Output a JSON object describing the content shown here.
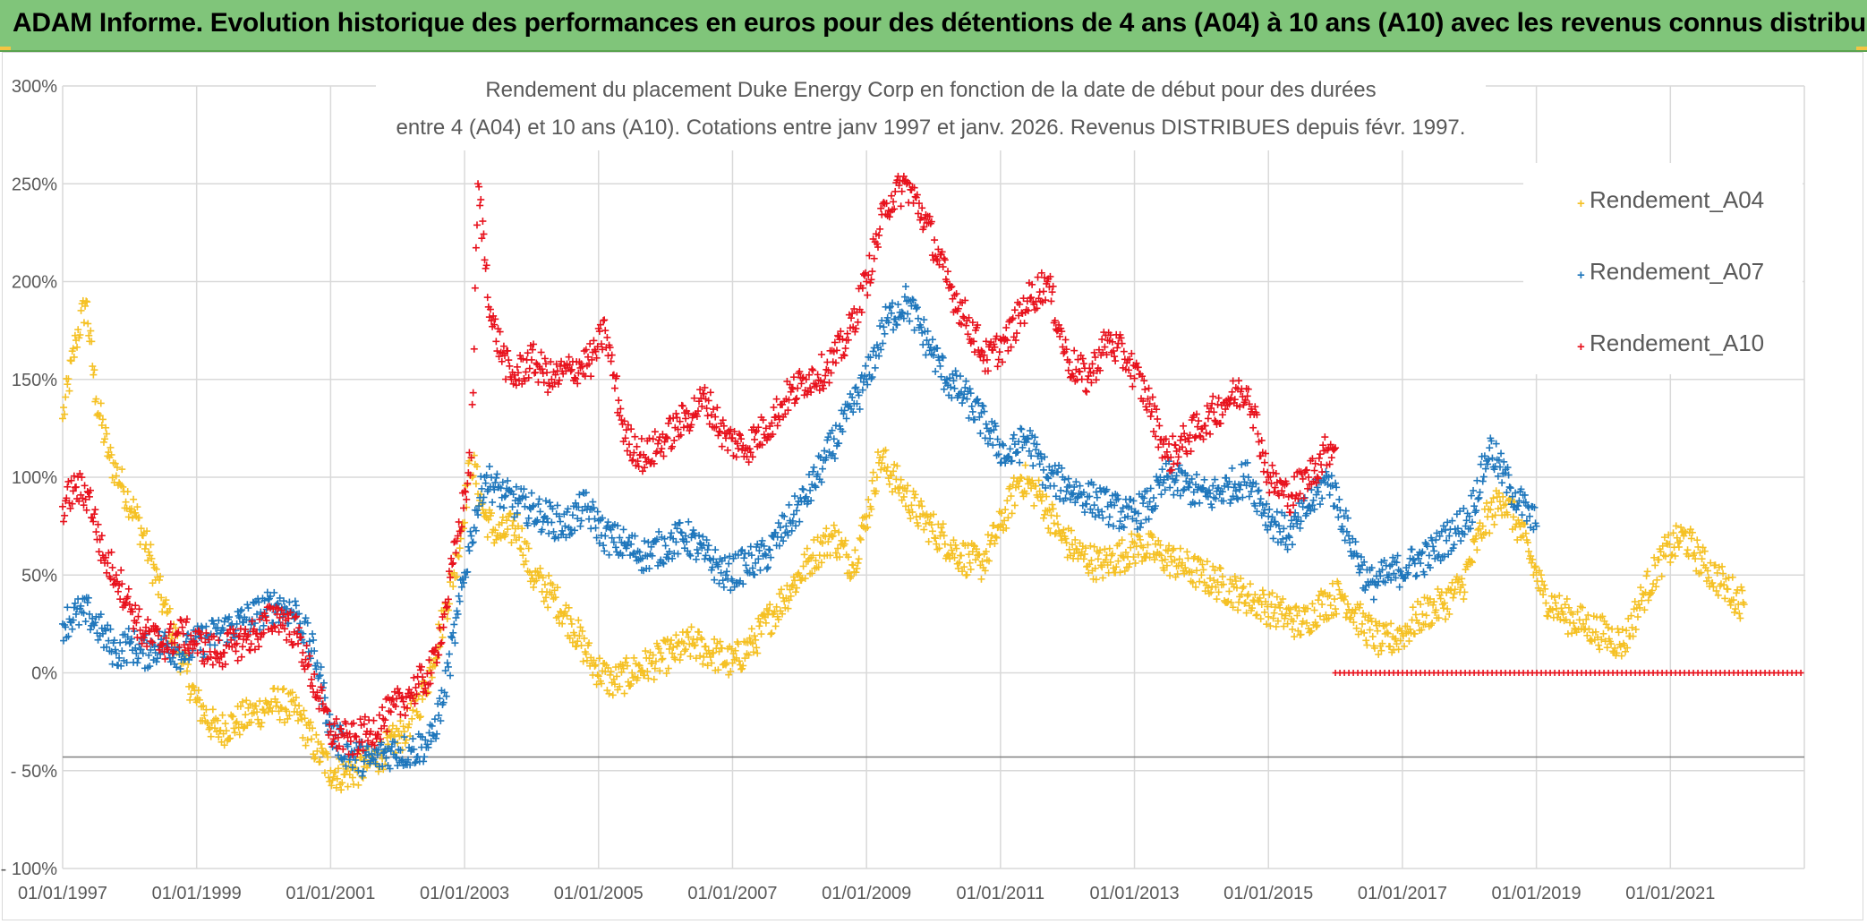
{
  "header": {
    "title": "ADAM Informe. Evolution historique des performances en euros pour des détentions de 4 ans (A04) à 10 ans (A10) avec les revenus connus distribués"
  },
  "colors": {
    "banner": "#80c57a",
    "A04": "#f5c125",
    "A07": "#1f77bc",
    "A10": "#e8121d",
    "grid": "#d9d9d9",
    "text": "#595959"
  },
  "chart_data": {
    "type": "scatter",
    "title_lines": [
      "Rendement du placement Duke Energy Corp en fonction de la date de début pour des durées",
      "entre 4 (A04) et 10 ans (A10). Cotations entre janv 1997 et janv. 2026. Revenus DISTRIBUES depuis févr. 1997."
    ],
    "xlabel": "",
    "ylabel": "",
    "xlim": [
      1997.0,
      2023.0
    ],
    "ylim": [
      -100,
      300
    ],
    "y_ticks": [
      300,
      250,
      200,
      150,
      100,
      50,
      0,
      -50,
      -100
    ],
    "y_tick_labels": [
      "300%",
      "250%",
      "200%",
      "150%",
      "100%",
      "50%",
      "0%",
      "- 50%",
      "- 100%"
    ],
    "x_ticks": [
      1997,
      1999,
      2001,
      2003,
      2005,
      2007,
      2009,
      2011,
      2013,
      2015,
      2017,
      2019,
      2021
    ],
    "x_tick_labels": [
      "01/01/1997",
      "01/01/1999",
      "01/01/2001",
      "01/01/2003",
      "01/01/2005",
      "01/01/2007",
      "01/01/2009",
      "01/01/2011",
      "01/01/2013",
      "01/01/2015",
      "01/01/2017",
      "01/01/2019",
      "01/01/2021"
    ],
    "reference_line_y": -43,
    "legend_position": "top-right",
    "series": [
      {
        "name": "Rendement_A04",
        "color": "#f5c125",
        "x": [
          1997.0,
          1997.2,
          1997.35,
          1997.5,
          1997.7,
          1997.9,
          1998.1,
          1998.3,
          1998.5,
          1998.8,
          1999.0,
          1999.3,
          1999.6,
          1999.9,
          2000.2,
          2000.5,
          2000.8,
          2001.0,
          2001.2,
          2001.5,
          2001.8,
          2002.1,
          2002.4,
          2002.7,
          2002.9,
          2003.1,
          2003.3,
          2003.5,
          2003.8,
          2004.0,
          2004.3,
          2004.6,
          2004.9,
          2005.2,
          2005.5,
          2005.8,
          2006.1,
          2006.4,
          2006.7,
          2007.0,
          2007.3,
          2007.6,
          2007.9,
          2008.2,
          2008.5,
          2008.8,
          2009.0,
          2009.2,
          2009.5,
          2009.8,
          2010.1,
          2010.4,
          2010.7,
          2011.0,
          2011.3,
          2011.6,
          2011.9,
          2012.2,
          2012.5,
          2012.8,
          2013.1,
          2013.4,
          2013.7,
          2014.0,
          2014.3,
          2014.6,
          2014.9,
          2015.2,
          2015.5,
          2015.8,
          2016.1,
          2016.4,
          2016.7,
          2017.0,
          2017.3,
          2017.6,
          2017.9,
          2018.2,
          2018.5,
          2018.8,
          2019.1,
          2019.4,
          2019.7,
          2020.0,
          2020.3,
          2020.6,
          2020.9,
          2021.2,
          2021.5,
          2021.8,
          2022.1
        ],
        "y": [
          130,
          170,
          190,
          140,
          110,
          95,
          80,
          60,
          35,
          5,
          -15,
          -30,
          -25,
          -20,
          -15,
          -20,
          -40,
          -50,
          -52,
          -48,
          -40,
          -30,
          -10,
          30,
          60,
          110,
          80,
          70,
          75,
          50,
          40,
          25,
          5,
          -5,
          0,
          5,
          10,
          15,
          10,
          5,
          15,
          30,
          45,
          60,
          70,
          55,
          80,
          110,
          95,
          80,
          70,
          60,
          55,
          75,
          100,
          90,
          70,
          60,
          55,
          60,
          65,
          60,
          55,
          50,
          45,
          40,
          35,
          30,
          25,
          35,
          40,
          25,
          15,
          20,
          30,
          35,
          45,
          75,
          90,
          70,
          40,
          30,
          25,
          20,
          15,
          40,
          60,
          70,
          55,
          45,
          35
        ]
      },
      {
        "name": "Rendement_A07",
        "color": "#1f77bc",
        "x": [
          1997.0,
          1997.2,
          1997.4,
          1997.6,
          1997.8,
          1998.0,
          1998.2,
          1998.5,
          1998.8,
          1999.0,
          1999.3,
          1999.6,
          1999.9,
          2000.2,
          2000.5,
          2000.8,
          2001.0,
          2001.3,
          2001.6,
          2001.9,
          2002.2,
          2002.5,
          2002.7,
          2002.9,
          2003.1,
          2003.3,
          2003.6,
          2003.9,
          2004.2,
          2004.5,
          2004.8,
          2005.1,
          2005.4,
          2005.7,
          2006.0,
          2006.3,
          2006.6,
          2006.9,
          2007.2,
          2007.5,
          2007.8,
          2008.1,
          2008.4,
          2008.7,
          2009.0,
          2009.3,
          2009.6,
          2009.9,
          2010.2,
          2010.5,
          2010.8,
          2011.1,
          2011.4,
          2011.7,
          2012.0,
          2012.3,
          2012.6,
          2012.9,
          2013.2,
          2013.5,
          2013.8,
          2014.1,
          2014.4,
          2014.7,
          2015.0,
          2015.3,
          2015.6,
          2015.9,
          2016.2,
          2016.5,
          2016.8,
          2017.1,
          2017.4,
          2017.7,
          2018.0,
          2018.3,
          2018.6,
          2018.9,
          2019.0
        ],
        "y": [
          25,
          30,
          30,
          20,
          10,
          15,
          10,
          15,
          10,
          15,
          20,
          25,
          30,
          35,
          30,
          5,
          -30,
          -42,
          -45,
          -40,
          -40,
          -35,
          -10,
          30,
          70,
          100,
          90,
          85,
          80,
          75,
          85,
          70,
          65,
          60,
          65,
          70,
          60,
          50,
          55,
          60,
          75,
          90,
          110,
          130,
          150,
          180,
          190,
          170,
          150,
          140,
          125,
          110,
          120,
          100,
          95,
          90,
          85,
          80,
          85,
          100,
          95,
          90,
          95,
          100,
          80,
          70,
          85,
          100,
          70,
          45,
          50,
          55,
          60,
          70,
          80,
          115,
          95,
          80,
          75
        ]
      },
      {
        "name": "Rendement_A10",
        "color": "#e8121d",
        "x": [
          1997.0,
          1997.2,
          1997.4,
          1997.6,
          1997.8,
          1998.0,
          1998.2,
          1998.5,
          1998.8,
          1999.0,
          1999.3,
          1999.6,
          1999.9,
          2000.2,
          2000.5,
          2000.8,
          2001.0,
          2001.3,
          2001.6,
          2001.9,
          2002.2,
          2002.5,
          2002.7,
          2002.9,
          2003.1,
          2003.2,
          2003.4,
          2003.7,
          2004.0,
          2004.3,
          2004.6,
          2004.9,
          2005.1,
          2005.4,
          2005.7,
          2006.0,
          2006.3,
          2006.6,
          2006.9,
          2007.2,
          2007.5,
          2007.8,
          2008.1,
          2008.4,
          2008.7,
          2009.0,
          2009.3,
          2009.6,
          2009.9,
          2010.2,
          2010.5,
          2010.8,
          2011.1,
          2011.4,
          2011.7,
          2012.0,
          2012.3,
          2012.6,
          2012.9,
          2013.2,
          2013.5,
          2013.8,
          2014.1,
          2014.4,
          2014.7,
          2015.0,
          2015.3,
          2015.6,
          2015.9,
          2016.0
        ],
        "y": [
          85,
          95,
          90,
          60,
          50,
          35,
          20,
          15,
          20,
          15,
          10,
          15,
          20,
          30,
          20,
          -10,
          -30,
          -35,
          -30,
          -20,
          -10,
          0,
          30,
          70,
          110,
          250,
          180,
          150,
          160,
          150,
          155,
          160,
          175,
          120,
          110,
          120,
          130,
          140,
          120,
          115,
          125,
          140,
          150,
          155,
          170,
          200,
          240,
          250,
          230,
          200,
          180,
          160,
          170,
          190,
          200,
          160,
          150,
          170,
          160,
          140,
          110,
          120,
          130,
          140,
          145,
          100,
          90,
          100,
          115,
          115
        ]
      },
      {
        "name": "Rendement_A10 (zero)",
        "color": "#e8121d",
        "x_range": [
          2016.0,
          2023.0
        ],
        "y": [
          0
        ]
      }
    ]
  },
  "legend": {
    "items": [
      {
        "label": "Rendement_A04",
        "color": "#f5c125"
      },
      {
        "label": "Rendement_A07",
        "color": "#1f77bc"
      },
      {
        "label": "Rendement_A10",
        "color": "#e8121d"
      }
    ]
  }
}
